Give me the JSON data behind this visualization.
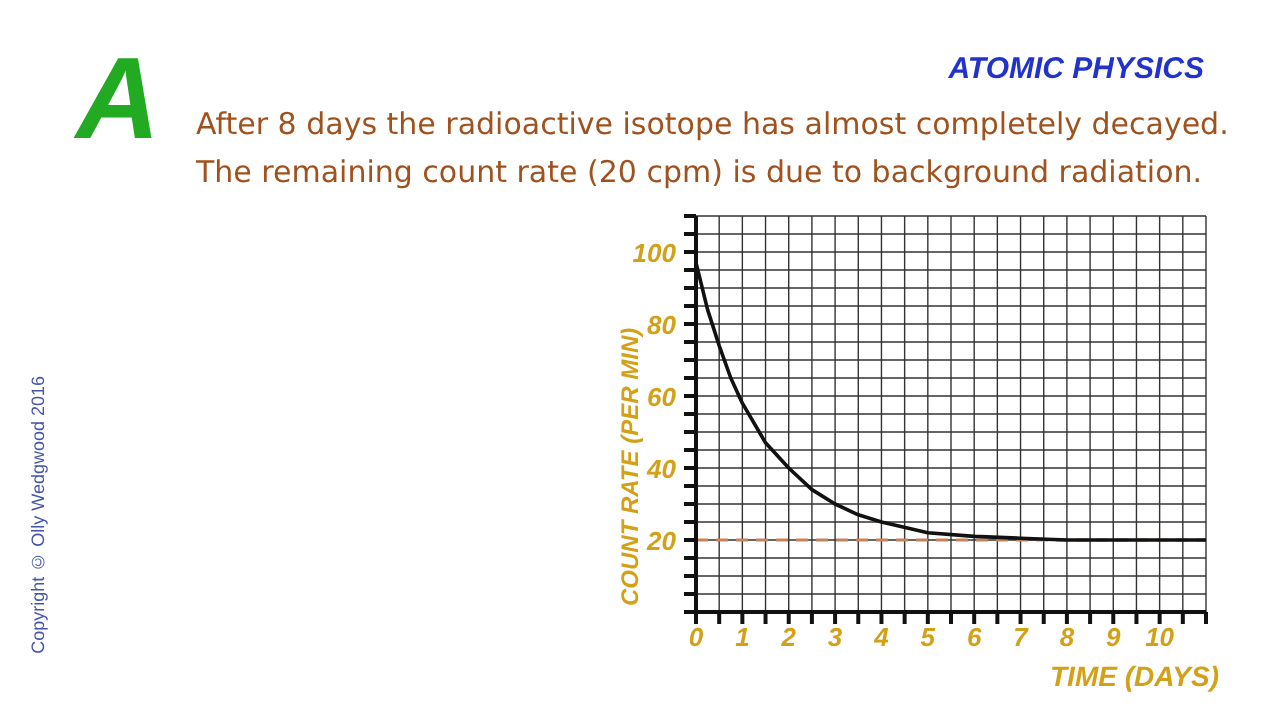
{
  "chart_data": {
    "type": "line",
    "title": "After 8 days the radioactive isotope has almost completely decayed. The remaining count rate (20 cpm) is due to background radiation.",
    "xlabel": "TIME (DAYS)",
    "ylabel": "COUNT RATE (PER MIN)",
    "annotations": [
      "A",
      "ATOMIC PHYSICS",
      "Copyright © Olly Wedgwood 2016"
    ],
    "x": [
      0,
      0.25,
      0.5,
      0.75,
      1,
      1.5,
      2,
      2.5,
      3,
      3.5,
      4,
      5,
      6,
      7,
      8,
      11
    ],
    "series": [
      {
        "color": "#111111",
        "values": [
          97,
          84,
          74,
          65,
          58,
          47,
          40,
          34,
          30,
          27,
          25,
          22,
          21,
          20.5,
          20,
          20
        ]
      }
    ],
    "xlim": [
      0,
      11
    ],
    "ylim": [
      0,
      110
    ],
    "xticks": [
      0,
      {
        "value": 0.5,
        "label": null
      },
      1,
      {
        "value": 1.5,
        "label": null
      },
      2,
      {
        "value": 2.5,
        "label": null
      },
      3,
      {
        "value": 3.5,
        "label": null
      },
      4,
      {
        "value": 4.5,
        "label": null
      },
      5,
      {
        "value": 5.5,
        "label": null
      },
      6,
      {
        "value": 6.5,
        "label": null
      },
      7,
      {
        "value": 7.5,
        "label": null
      },
      8,
      {
        "value": 8.5,
        "label": null
      },
      9,
      {
        "value": 9.5,
        "label": null
      },
      10,
      {
        "value": 10.5,
        "label": null
      },
      {
        "value": 11,
        "label": null
      }
    ],
    "yticks": [
      {
        "value": 0,
        "label": null
      },
      {
        "value": 5,
        "label": null
      },
      {
        "value": 10,
        "label": null
      },
      {
        "value": 15,
        "label": null
      },
      20,
      {
        "value": 25,
        "label": null
      },
      {
        "value": 30,
        "label": null
      },
      {
        "value": 35,
        "label": null
      },
      40,
      {
        "value": 45,
        "label": null
      },
      {
        "value": 50,
        "label": null
      },
      {
        "value": 55,
        "label": null
      },
      60,
      {
        "value": 65,
        "label": null
      },
      {
        "value": 70,
        "label": null
      },
      {
        "value": 75,
        "label": null
      },
      80,
      {
        "value": 85,
        "label": null
      },
      {
        "value": 90,
        "label": null
      },
      {
        "value": 95,
        "label": null
      },
      100,
      {
        "value": 105,
        "label": null
      },
      {
        "value": 110,
        "label": null
      }
    ],
    "ref_lines": [
      {
        "axis": "y",
        "value": 20,
        "color": "#c8825a",
        "line_style": "dashed"
      }
    ],
    "grid": true,
    "marker": "none",
    "line_style": "solid"
  }
}
